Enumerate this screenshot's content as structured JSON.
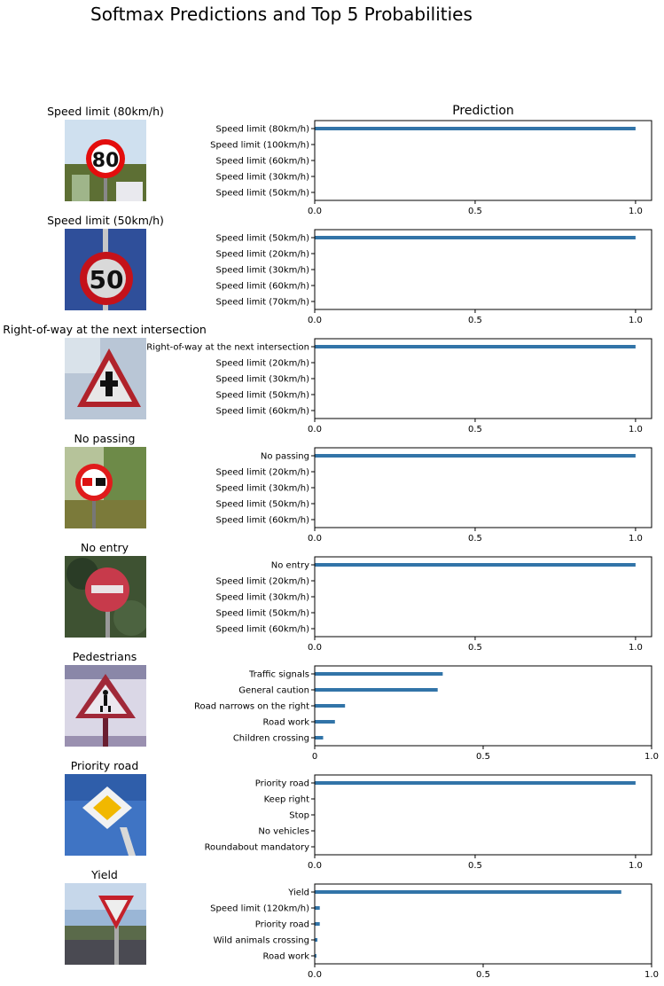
{
  "figure_title": "Softmax Predictions and Top 5 Probabilities",
  "prediction_header": "Prediction",
  "colors": {
    "bar": "#3274a8",
    "axis": "#000000"
  },
  "images": [
    {
      "title": "Speed limit (80km/h)",
      "icon": "speed-limit-80-sign",
      "number": "80"
    },
    {
      "title": "Speed limit (50km/h)",
      "icon": "speed-limit-50-sign",
      "number": "50"
    },
    {
      "title": "Right-of-way at the next intersection",
      "icon": "right-of-way-sign"
    },
    {
      "title": "No passing",
      "icon": "no-passing-sign"
    },
    {
      "title": "No entry",
      "icon": "no-entry-sign"
    },
    {
      "title": "Pedestrians",
      "icon": "pedestrians-sign"
    },
    {
      "title": "Priority road",
      "icon": "priority-road-sign"
    },
    {
      "title": "Yield",
      "icon": "yield-sign"
    }
  ],
  "chart_data": [
    {
      "type": "bar",
      "orientation": "horizontal",
      "title": "Prediction",
      "categories": [
        "Speed limit (80km/h)",
        "Speed limit (100km/h)",
        "Speed limit (60km/h)",
        "Speed limit (30km/h)",
        "Speed limit (50km/h)"
      ],
      "values": [
        1.0,
        0,
        0,
        0,
        0
      ],
      "xlim": [
        0,
        1.05
      ],
      "xticks": [
        "0.0",
        "0.5",
        "1.0"
      ]
    },
    {
      "type": "bar",
      "orientation": "horizontal",
      "categories": [
        "Speed limit (50km/h)",
        "Speed limit (20km/h)",
        "Speed limit (30km/h)",
        "Speed limit (60km/h)",
        "Speed limit (70km/h)"
      ],
      "values": [
        1.0,
        0,
        0,
        0,
        0
      ],
      "xlim": [
        0,
        1.05
      ],
      "xticks": [
        "0.0",
        "0.5",
        "1.0"
      ]
    },
    {
      "type": "bar",
      "orientation": "horizontal",
      "categories": [
        "Right-of-way at the next intersection",
        "Speed limit (20km/h)",
        "Speed limit (30km/h)",
        "Speed limit (50km/h)",
        "Speed limit (60km/h)"
      ],
      "values": [
        1.0,
        0,
        0,
        0,
        0
      ],
      "xlim": [
        0,
        1.05
      ],
      "xticks": [
        "0.0",
        "0.5",
        "1.0"
      ]
    },
    {
      "type": "bar",
      "orientation": "horizontal",
      "categories": [
        "No passing",
        "Speed limit (20km/h)",
        "Speed limit (30km/h)",
        "Speed limit (50km/h)",
        "Speed limit (60km/h)"
      ],
      "values": [
        1.0,
        0,
        0,
        0,
        0
      ],
      "xlim": [
        0,
        1.05
      ],
      "xticks": [
        "0.0",
        "0.5",
        "1.0"
      ]
    },
    {
      "type": "bar",
      "orientation": "horizontal",
      "categories": [
        "No entry",
        "Speed limit (20km/h)",
        "Speed limit (30km/h)",
        "Speed limit (50km/h)",
        "Speed limit (60km/h)"
      ],
      "values": [
        1.0,
        0,
        0,
        0,
        0
      ],
      "xlim": [
        0,
        1.05
      ],
      "xticks": [
        "0.0",
        "0.5",
        "1.0"
      ]
    },
    {
      "type": "bar",
      "orientation": "horizontal",
      "categories": [
        "Traffic signals",
        "General caution",
        "Road narrows on the right",
        "Road work",
        "Children crossing"
      ],
      "values": [
        0.38,
        0.365,
        0.09,
        0.06,
        0.025
      ],
      "xlim": [
        0,
        1.0
      ],
      "xticks": [
        "0",
        "0.5",
        "1.0"
      ]
    },
    {
      "type": "bar",
      "orientation": "horizontal",
      "categories": [
        "Priority road",
        "Keep right",
        "Stop",
        "No vehicles",
        "Roundabout mandatory"
      ],
      "values": [
        1.0,
        0,
        0,
        0,
        0
      ],
      "xlim": [
        0,
        1.05
      ],
      "xticks": [
        "0.0",
        "0.5",
        "1.0"
      ]
    },
    {
      "type": "bar",
      "orientation": "horizontal",
      "categories": [
        "Yield",
        "Speed limit (120km/h)",
        "Priority road",
        "Wild animals crossing",
        "Road work"
      ],
      "values": [
        0.91,
        0.015,
        0.015,
        0.008,
        0.005
      ],
      "xlim": [
        0,
        1.0
      ],
      "xticks": [
        "0.0",
        "0.5",
        "1.0"
      ]
    }
  ]
}
